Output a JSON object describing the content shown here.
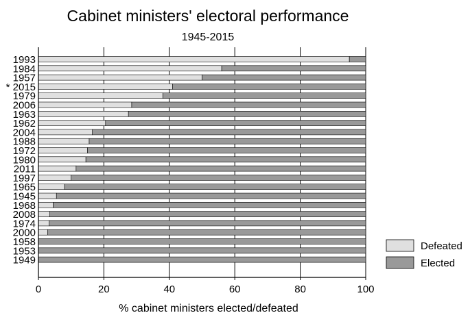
{
  "chart_data": {
    "type": "bar",
    "orientation": "horizontal",
    "stacked": true,
    "title": "Cabinet ministers' electoral performance",
    "subtitle": "1945-2015",
    "xlabel": "% cabinet ministers elected/defeated",
    "ylabel": "",
    "xlim": [
      0,
      100
    ],
    "xticks": [
      "0",
      "20",
      "40",
      "60",
      "80",
      "100"
    ],
    "grid": "vertical",
    "legend_position": "bottom-right",
    "categories": [
      "1993",
      "1984",
      "1957",
      "* 2015",
      "1979",
      "2006",
      "1963",
      "1962",
      "2004",
      "1988",
      "1972",
      "1980",
      "2011",
      "1997",
      "1965",
      "1945",
      "1968",
      "2008",
      "1974",
      "2000",
      "1958",
      "1953",
      "1949"
    ],
    "series": [
      {
        "name": "Defeated",
        "color": "#e0e0e0",
        "values": [
          95,
          56,
          50,
          41,
          38,
          28.5,
          27.5,
          20.5,
          16.5,
          15.5,
          15,
          14.5,
          11.5,
          10,
          8,
          5.5,
          4.5,
          3.5,
          3.3,
          2.8,
          0,
          0,
          0
        ]
      },
      {
        "name": "Elected",
        "color": "#999999",
        "values": [
          5,
          44,
          50,
          59,
          62,
          71.5,
          72.5,
          79.5,
          83.5,
          84.5,
          85,
          85.5,
          88.5,
          90,
          92,
          94.5,
          95.5,
          96.5,
          96.7,
          97.2,
          100,
          100,
          100
        ]
      }
    ]
  }
}
